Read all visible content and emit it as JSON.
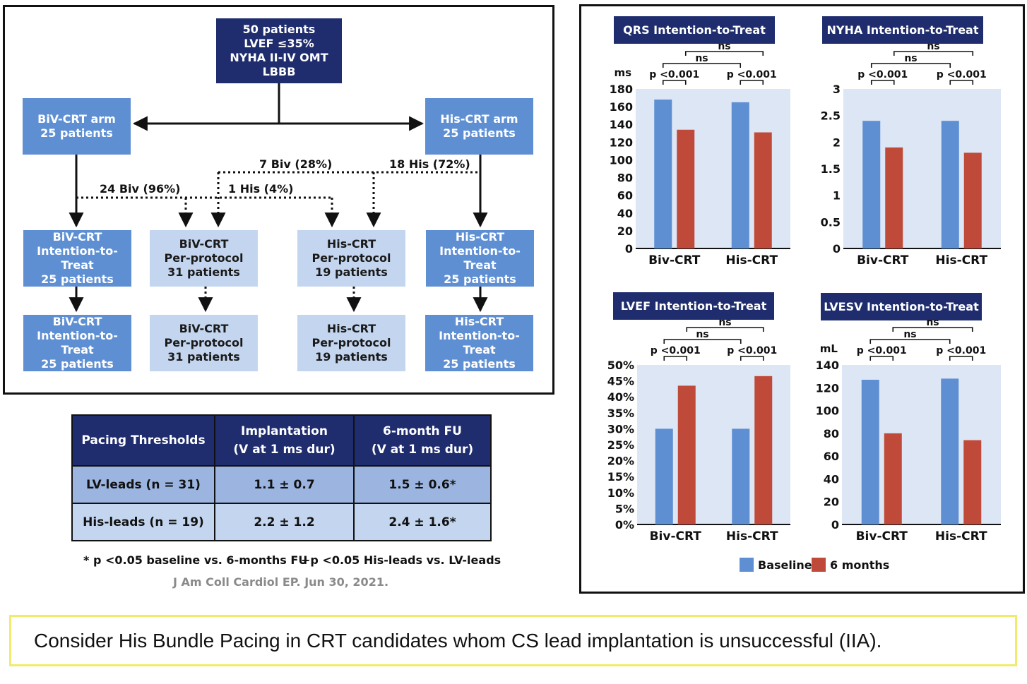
{
  "flowchart": {
    "top_box": "50 patients\nLVEF ≤35%\nNYHA II-IV OMT\nLBBB",
    "biv_arm": "BiV-CRT arm\n25 patients",
    "his_arm": "His-CRT arm\n25 patients",
    "labels": {
      "biv_96": "24 Biv (96%)",
      "his_4": "1 His (4%)",
      "biv_28": "7 Biv (28%)",
      "his_72": "18 His (72%)"
    },
    "row1": [
      "BiV-CRT\nIntention-to-Treat\n25 patients",
      "BiV-CRT\nPer-protocol\n31 patients",
      "His-CRT\nPer-protocol\n19 patients",
      "His-CRT\nIntention-to-Treat\n25 patients"
    ],
    "row2": [
      "BiV-CRT\nIntention-to-Treat\n25 patients",
      "BiV-CRT\nPer-protocol\n31 patients",
      "His-CRT\nPer-protocol\n19 patients",
      "His-CRT\nIntention-to-Treat\n25 patients"
    ]
  },
  "table": {
    "headers": [
      "Pacing Thresholds",
      "Implantation\n(V at 1 ms dur)",
      "6-month FU\n(V at 1 ms dur)"
    ],
    "rows": [
      [
        "LV-leads (n = 31)",
        "1.1 ± 0.7",
        "1.5 ± 0.6*"
      ],
      [
        "His-leads (n = 19)",
        "2.2 ± 1.2",
        "2.4 ± 1.6*"
      ]
    ],
    "footnote_1": "* p <0.05 baseline vs. 6-months FU",
    "footnote_2": "+p <0.05 His-leads vs. LV-leads",
    "citation": "J Am Coll Cardiol EP. Jun 30, 2021."
  },
  "colors": {
    "baseline": "#5f8fd3",
    "six_months": "#c04a3a",
    "plot_bg": "#dde6f5",
    "navy": "#1f2d6e"
  },
  "legend": {
    "baseline": "Baseline",
    "six_months": "6 months"
  },
  "chart_data": [
    {
      "type": "bar",
      "title": "QRS Intention-to-Treat",
      "unit": "ms",
      "categories": [
        "Biv-CRT",
        "His-CRT"
      ],
      "series": [
        {
          "name": "Baseline",
          "values": [
            168,
            165
          ]
        },
        {
          "name": "6 months",
          "values": [
            134,
            131
          ]
        }
      ],
      "ylim": [
        0,
        180
      ],
      "yticks": [
        "0",
        "20",
        "40",
        "60",
        "80",
        "100",
        "120",
        "140",
        "160",
        "180"
      ],
      "sig_within": "p <0.001",
      "sig_between": "ns"
    },
    {
      "type": "bar",
      "title": "NYHA Intention-to-Treat",
      "unit": "",
      "categories": [
        "Biv-CRT",
        "His-CRT"
      ],
      "series": [
        {
          "name": "Baseline",
          "values": [
            2.4,
            2.4
          ]
        },
        {
          "name": "6 months",
          "values": [
            1.9,
            1.8
          ]
        }
      ],
      "ylim": [
        0,
        3
      ],
      "yticks": [
        "0",
        "0.5",
        "1",
        "1.5",
        "2",
        "2.5",
        "3"
      ],
      "sig_within": "p <0.001",
      "sig_between": "ns"
    },
    {
      "type": "bar",
      "title": "LVEF Intention-to-Treat",
      "unit": "",
      "categories": [
        "Biv-CRT",
        "His-CRT"
      ],
      "series": [
        {
          "name": "Baseline",
          "values": [
            30,
            30
          ]
        },
        {
          "name": "6 months",
          "values": [
            43.5,
            46.5
          ]
        }
      ],
      "ylim": [
        0,
        50
      ],
      "yticks": [
        "0%",
        "5%",
        "10%",
        "15%",
        "20%",
        "25%",
        "30%",
        "35%",
        "40%",
        "45%",
        "50%"
      ],
      "sig_within": "p <0.001",
      "sig_between": "ns"
    },
    {
      "type": "bar",
      "title": "LVESV Intention-to-Treat",
      "unit": "mL",
      "categories": [
        "Biv-CRT",
        "His-CRT"
      ],
      "series": [
        {
          "name": "Baseline",
          "values": [
            127,
            128
          ]
        },
        {
          "name": "6 months",
          "values": [
            80,
            74
          ]
        }
      ],
      "ylim": [
        0,
        140
      ],
      "yticks": [
        "0",
        "20",
        "40",
        "60",
        "80",
        "100",
        "120",
        "140"
      ],
      "sig_within": "p <0.001",
      "sig_between": "ns"
    }
  ],
  "banner": "Consider His Bundle Pacing in CRT candidates whom CS lead implantation is unsuccessful (IIA)."
}
